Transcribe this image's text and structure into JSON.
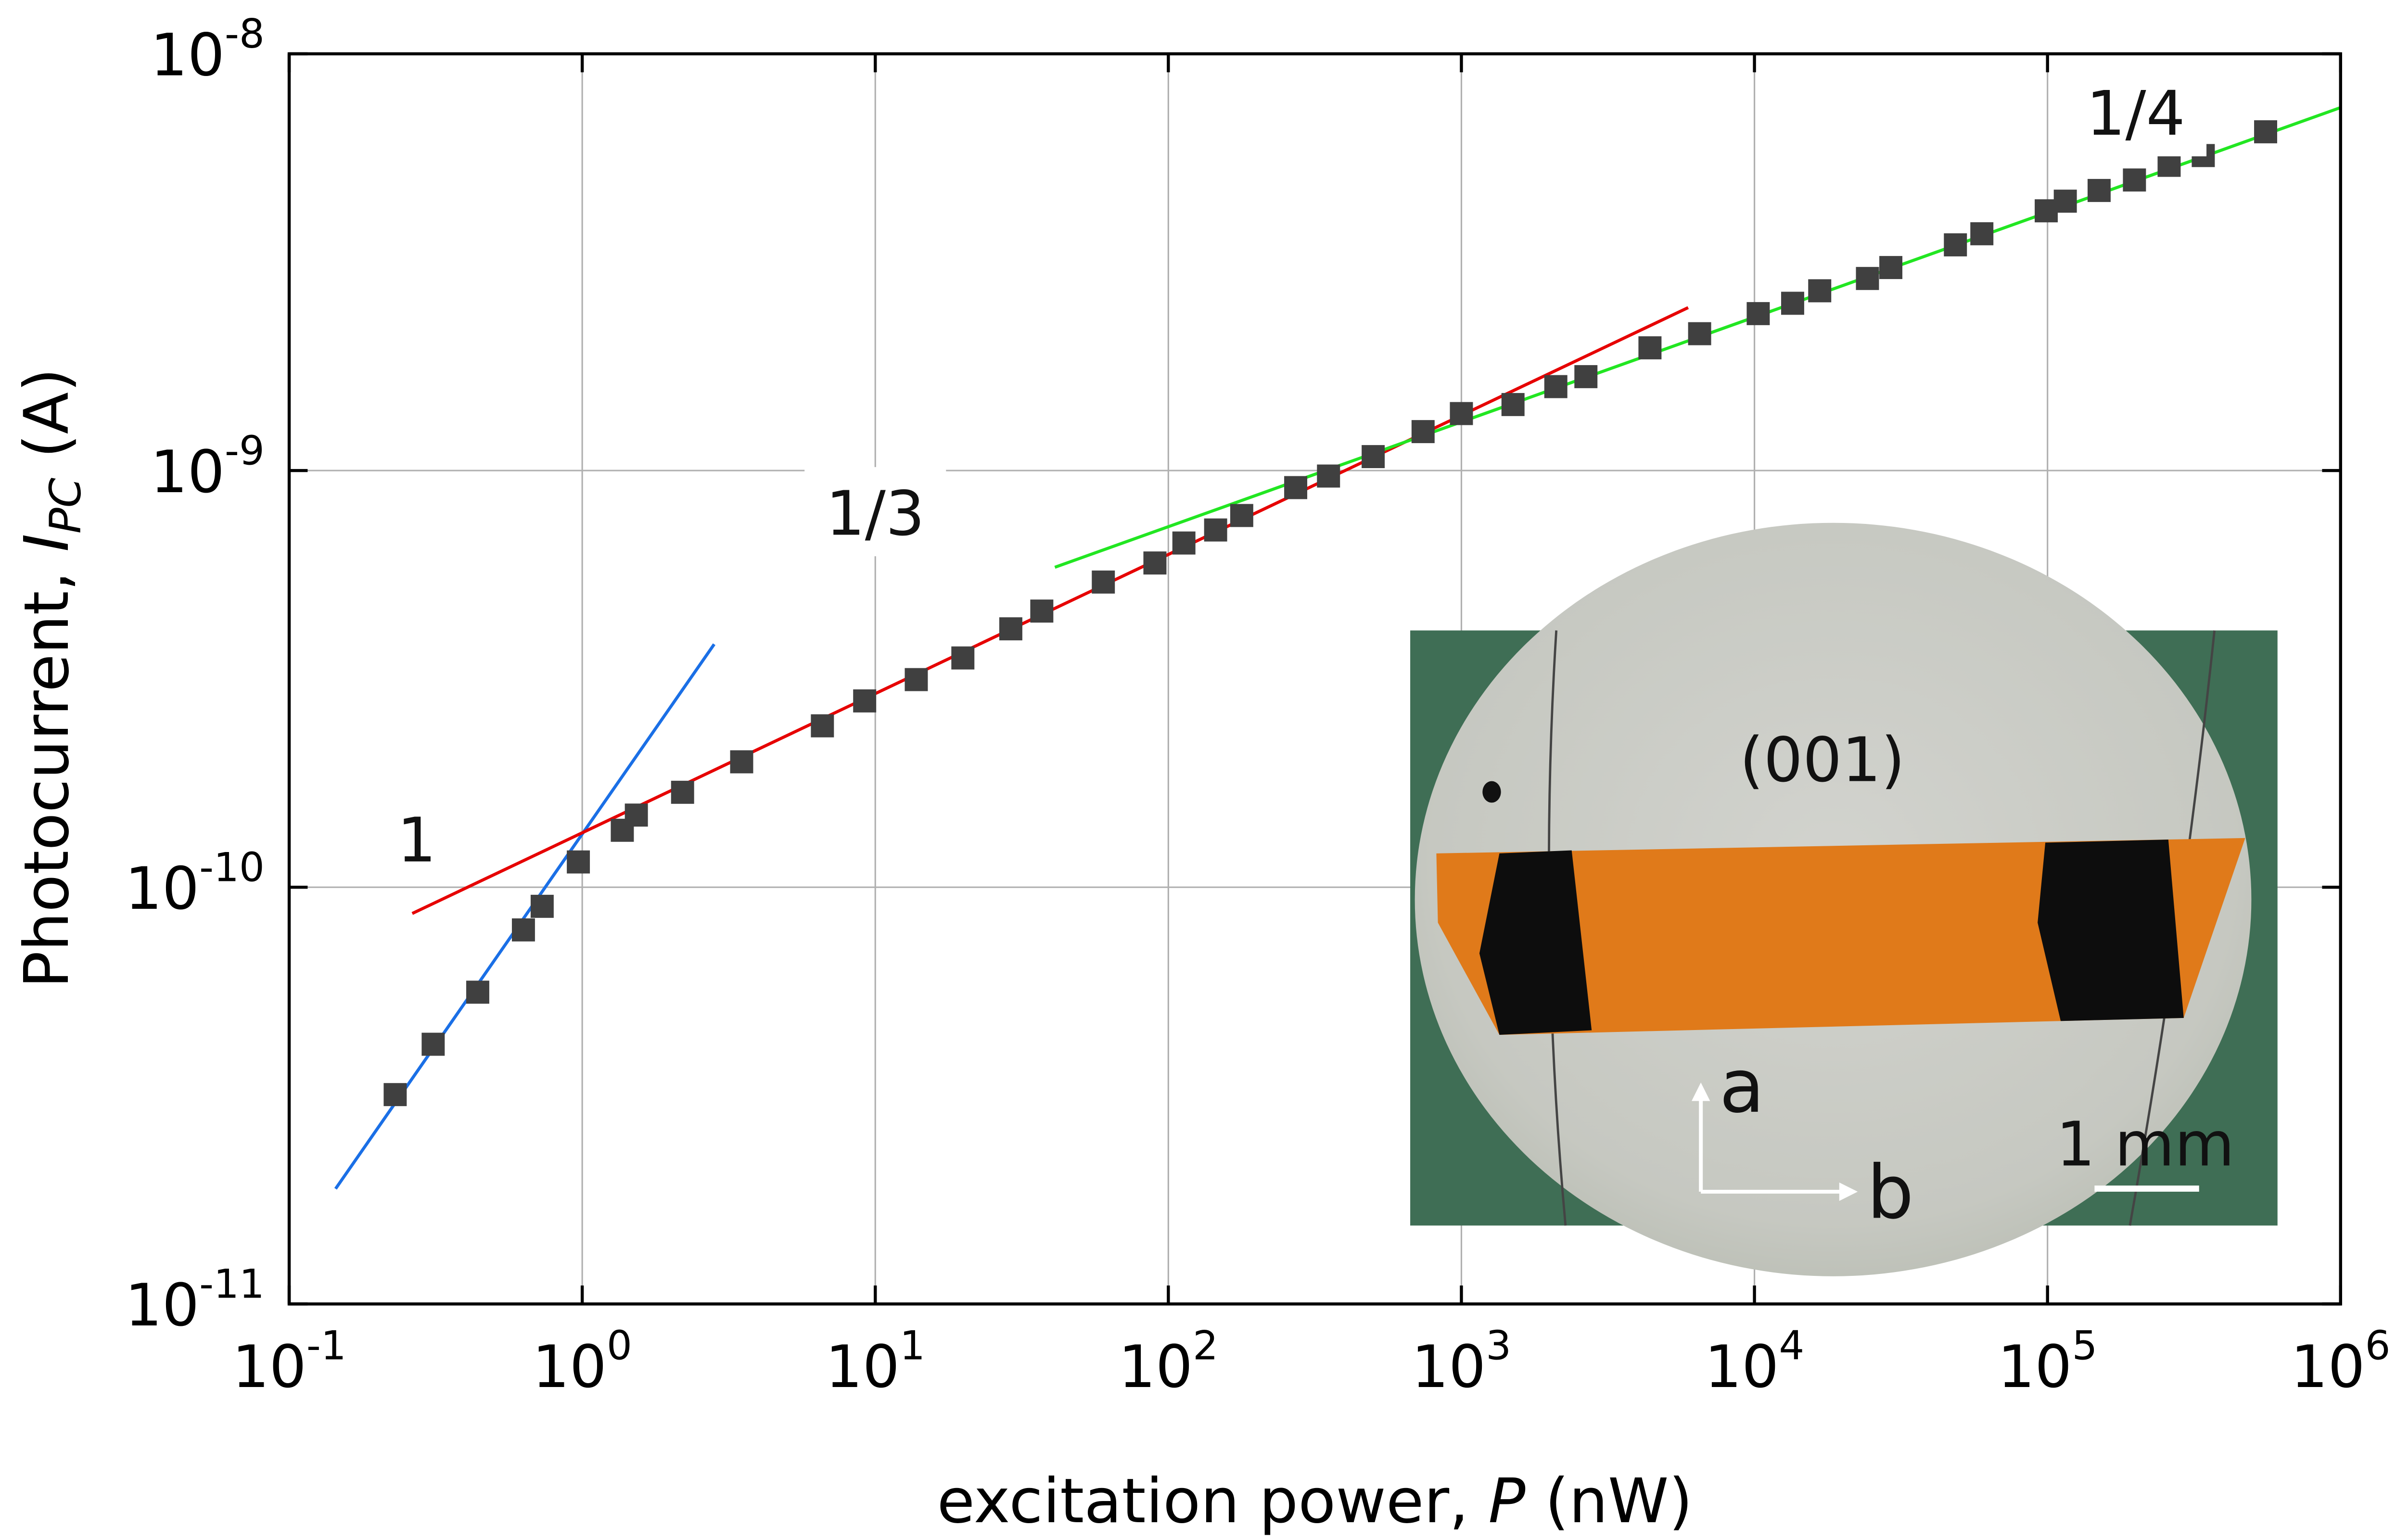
{
  "chart_data": {
    "type": "scatter",
    "xlabel": {
      "prefix": "excitation power, ",
      "italic": "P",
      "suffix": " (nW)"
    },
    "ylabel": {
      "prefix": "Photocurrent, ",
      "italic": "I",
      "sub": "PC",
      "suffix": " (A)"
    },
    "x_scale": "log",
    "y_scale": "log",
    "xlim": [
      0.1,
      1000000
    ],
    "ylim": [
      1e-11,
      1e-08
    ],
    "grid": true,
    "x_ticks": [
      {
        "base": "10",
        "exp": "-1"
      },
      {
        "base": "10",
        "exp": "0"
      },
      {
        "base": "10",
        "exp": "1"
      },
      {
        "base": "10",
        "exp": "2"
      },
      {
        "base": "10",
        "exp": "3"
      },
      {
        "base": "10",
        "exp": "4"
      },
      {
        "base": "10",
        "exp": "5"
      },
      {
        "base": "10",
        "exp": "6"
      }
    ],
    "y_ticks": [
      {
        "base": "10",
        "exp": "-11"
      },
      {
        "base": "10",
        "exp": "-10"
      },
      {
        "base": "10",
        "exp": "-9"
      },
      {
        "base": "10",
        "exp": "-8"
      }
    ],
    "marker_color": "#404040",
    "points": {
      "x": [
        0.23,
        0.31,
        0.44,
        0.63,
        0.73,
        0.97,
        1.37,
        1.53,
        2.2,
        3.5,
        6.6,
        9.2,
        13.8,
        19.9,
        29,
        37,
        60,
        90,
        113,
        145,
        178,
        272,
        352,
        500,
        740,
        1000,
        1500,
        2100,
        2660,
        4400,
        6500,
        10300,
        13500,
        16700,
        24300,
        29200,
        48500,
        59700,
        99000,
        115000,
        150000,
        198000,
        260000,
        340000,
        555000
      ],
      "y": [
        3.18e-11,
        4.2e-11,
        5.6e-11,
        7.9e-11,
        9e-11,
        1.15e-10,
        1.37e-10,
        1.49e-10,
        1.69e-10,
        2e-10,
        2.44e-10,
        2.8e-10,
        3.15e-10,
        3.55e-10,
        4.17e-10,
        4.6e-10,
        5.4e-10,
        6e-10,
        6.7e-10,
        7.2e-10,
        7.8e-10,
        9.1e-10,
        9.7e-10,
        1.08e-09,
        1.24e-09,
        1.37e-09,
        1.44e-09,
        1.59e-09,
        1.68e-09,
        1.97e-09,
        2.13e-09,
        2.38e-09,
        2.52e-09,
        2.7e-09,
        2.89e-09,
        3.07e-09,
        3.48e-09,
        3.7e-09,
        4.2e-09,
        4.43e-09,
        4.7e-09,
        4.98e-09,
        5.4e-09,
        5.7e-09,
        6.5e-09
      ]
    },
    "fits": [
      {
        "label": "1",
        "color": "#1a6fe6",
        "x": [
          0.144,
          2.82
        ],
        "y": [
          1.89e-11,
          3.83e-10
        ],
        "label_at": [
          0.23,
          1.3e-10
        ]
      },
      {
        "label": "1/3",
        "color": "#e60000",
        "x": [
          0.263,
          5940
        ],
        "y": [
          8.65e-11,
          2.46e-09
        ],
        "label_at": [
          10,
          7.9e-10
        ]
      },
      {
        "label": "1/4",
        "color": "#22e622",
        "x": [
          41,
          1000000
        ],
        "y": [
          5.86e-10,
          7.43e-09
        ],
        "label_at": [
          200000,
          7.2e-09
        ]
      }
    ]
  },
  "inset": {
    "orientation": "(001)",
    "axis_a": "a",
    "axis_b": "b",
    "scale_bar": "1 mm",
    "colors": {
      "background": "#3f6e55",
      "illumination": "#c9cac4",
      "crystal": "#e07a1a",
      "electrode": "#0d0d0d"
    }
  }
}
